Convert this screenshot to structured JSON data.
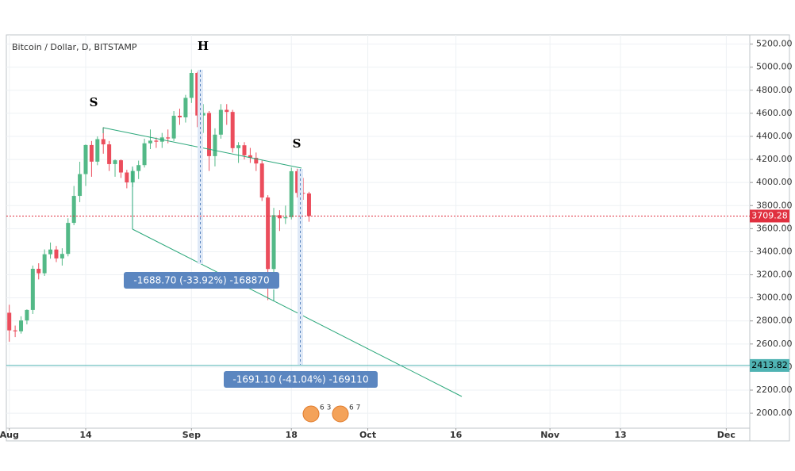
{
  "chart_data": {
    "type": "candlestick",
    "title": "Bitcoin / Dollar, D, BITSTAMP",
    "x": [
      0,
      1,
      2,
      3,
      4,
      5,
      6,
      7,
      8,
      9,
      10,
      11,
      12,
      13,
      14,
      15,
      16,
      17,
      18,
      19,
      20,
      21,
      22,
      23,
      24,
      25,
      26,
      27,
      28,
      29,
      30,
      31,
      32,
      33,
      34,
      35,
      36,
      37,
      38,
      39,
      40,
      41,
      42,
      43,
      44,
      45,
      46,
      47,
      48,
      49,
      50,
      51
    ],
    "open": [
      2871,
      2718,
      2710,
      2804,
      2895,
      3252,
      3213,
      3378,
      3419,
      3342,
      3381,
      3650,
      3884,
      4073,
      4325,
      4181,
      4376,
      4331,
      4160,
      4193,
      4087,
      4001,
      4100,
      4151,
      4340,
      4363,
      4354,
      4391,
      4382,
      4579,
      4565,
      4734,
      4950,
      4581,
      4603,
      4229,
      4415,
      4630,
      4612,
      4298,
      4323,
      4236,
      4214,
      4165,
      3870,
      3250,
      3717,
      3690,
      3700,
      4098,
      3910,
      3905
    ],
    "high": [
      2940,
      2760,
      2840,
      2900,
      3280,
      3300,
      3420,
      3480,
      3450,
      3430,
      3690,
      3970,
      4180,
      4330,
      4360,
      4400,
      4480,
      4360,
      4200,
      4200,
      4110,
      4120,
      4190,
      4380,
      4460,
      4390,
      4430,
      4460,
      4620,
      4640,
      4760,
      4980,
      4960,
      4680,
      4620,
      4470,
      4680,
      4680,
      4630,
      4350,
      4350,
      4300,
      4260,
      4190,
      3890,
      3780,
      3760,
      3800,
      4130,
      4120,
      4040,
      3920
    ],
    "low": [
      2620,
      2660,
      2690,
      2770,
      2860,
      3160,
      3190,
      3340,
      3310,
      3280,
      3360,
      3630,
      3830,
      3970,
      4050,
      4150,
      4250,
      4100,
      4050,
      4040,
      3950,
      3960,
      4030,
      4130,
      4290,
      4300,
      4300,
      4340,
      4360,
      4500,
      4520,
      4690,
      4480,
      4430,
      4100,
      4140,
      4380,
      4500,
      4260,
      4170,
      4200,
      4170,
      4100,
      3840,
      2980,
      3200,
      3580,
      3640,
      3680,
      3870,
      3850,
      3660
    ],
    "close": [
      2718,
      2710,
      2804,
      2895,
      3252,
      3213,
      3378,
      3419,
      3342,
      3381,
      3650,
      3884,
      4073,
      4325,
      4181,
      4376,
      4331,
      4160,
      4193,
      4087,
      4001,
      4100,
      4151,
      4340,
      4363,
      4354,
      4391,
      4382,
      4579,
      4565,
      4734,
      4950,
      4581,
      4603,
      4229,
      4415,
      4630,
      4612,
      4298,
      4323,
      4236,
      4214,
      4165,
      3870,
      3250,
      3717,
      3690,
      3700,
      4098,
      3910,
      3905,
      3709.28
    ],
    "up_color": "#53b987",
    "down_color": "#eb4d5c",
    "xlim": [
      -0.5,
      126
    ],
    "xticks": [
      {
        "value": 0,
        "label": "Aug"
      },
      {
        "value": 13,
        "label": "14"
      },
      {
        "value": 31,
        "label": "Sep"
      },
      {
        "value": 48,
        "label": "18"
      },
      {
        "value": 61,
        "label": "Oct"
      },
      {
        "value": 76,
        "label": "16"
      },
      {
        "value": 92,
        "label": "Nov"
      },
      {
        "value": 104,
        "label": "13"
      },
      {
        "value": 122,
        "label": "Dec"
      }
    ],
    "ylim": [
      1870,
      5280
    ],
    "yticks": [
      {
        "value": 2000,
        "label": "2000.00"
      },
      {
        "value": 2200,
        "label": "2200.00"
      },
      {
        "value": 2400,
        "label": "2400.00"
      },
      {
        "value": 2600,
        "label": "2600.00"
      },
      {
        "value": 2800,
        "label": "2800.00"
      },
      {
        "value": 3000,
        "label": "3000.00"
      },
      {
        "value": 3200,
        "label": "3200.00"
      },
      {
        "value": 3400,
        "label": "3400.00"
      },
      {
        "value": 3600,
        "label": "3600.00"
      },
      {
        "value": 3800,
        "label": "3800.00"
      },
      {
        "value": 4000,
        "label": "4000.00"
      },
      {
        "value": 4200,
        "label": "4200.00"
      },
      {
        "value": 4400,
        "label": "4400.00"
      },
      {
        "value": 4600,
        "label": "4600.00"
      },
      {
        "value": 4800,
        "label": "4800.00"
      },
      {
        "value": 5000,
        "label": "5000.00"
      },
      {
        "value": 5200,
        "label": "5200.00"
      }
    ],
    "grid": true,
    "price_lines": [
      {
        "value": 3709.28,
        "color": "#e0303f"
      },
      {
        "value": 2413.82,
        "color": "#4fb3b3"
      }
    ],
    "pattern_labels": [
      "S",
      "H",
      "S"
    ],
    "measurements": [
      "-1688.70 (-33.92%) -168870",
      "-1691.10 (-41.04%) -169110"
    ],
    "icons": [
      "6 3",
      "6 7"
    ]
  }
}
